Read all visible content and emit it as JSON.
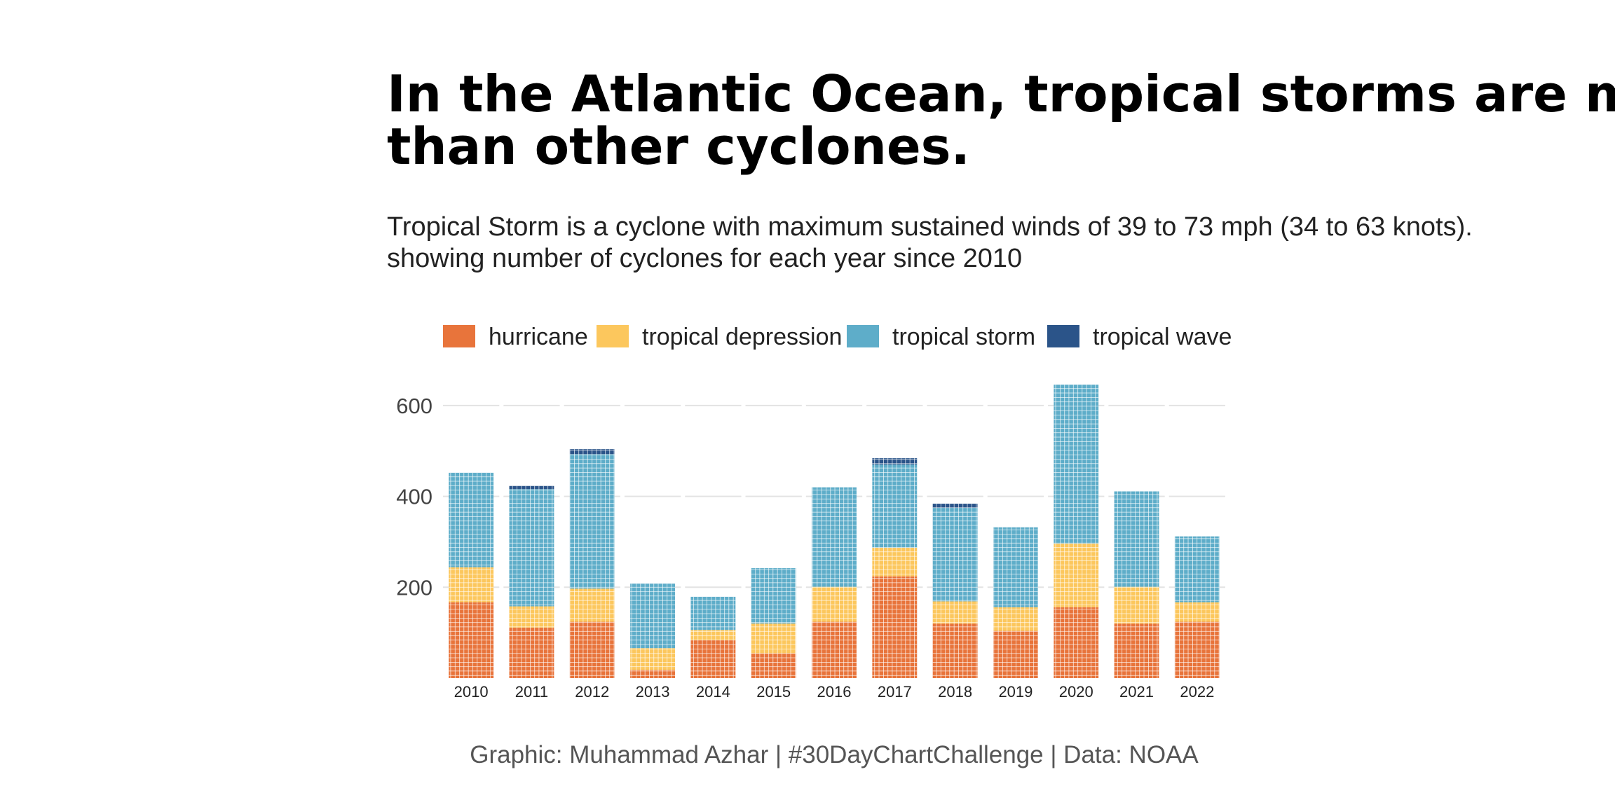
{
  "chart_data": {
    "type": "bar",
    "title": [
      "In the Atlantic Ocean, tropical storms are more common",
      "than other cyclones."
    ],
    "subtitle": [
      "Tropical Storm is a cyclone with maximum sustained winds of 39 to 73 mph (34 to 63 knots).",
      "showing number of cyclones for each year since 2010"
    ],
    "caption": "Graphic: Muhammad Azhar | #30DayChartChallenge | Data: NOAA",
    "categories": [
      "2010",
      "2011",
      "2012",
      "2013",
      "2014",
      "2015",
      "2016",
      "2017",
      "2018",
      "2019",
      "2020",
      "2021",
      "2022"
    ],
    "series": [
      {
        "name": "hurricane",
        "color": "#e8743b",
        "values": [
          167,
          111,
          124,
          18,
          84,
          54,
          124,
          224,
          120,
          104,
          156,
          120,
          124
        ]
      },
      {
        "name": "tropical depression",
        "color": "#fcc75d",
        "values": [
          77,
          47,
          73,
          48,
          22,
          66,
          77,
          63,
          49,
          52,
          140,
          81,
          43
        ]
      },
      {
        "name": "tropical storm",
        "color": "#5eadc9",
        "values": [
          208,
          258,
          296,
          142,
          73,
          122,
          219,
          183,
          206,
          176,
          350,
          210,
          145
        ]
      },
      {
        "name": "tropical wave",
        "color": "#2b5489",
        "values": [
          0,
          7,
          11,
          0,
          0,
          0,
          0,
          14,
          9,
          0,
          0,
          0,
          0
        ]
      }
    ],
    "stacked": true,
    "ylim": [
      0,
      660
    ],
    "yticks": [
      200,
      400,
      600
    ],
    "grid": true
  }
}
